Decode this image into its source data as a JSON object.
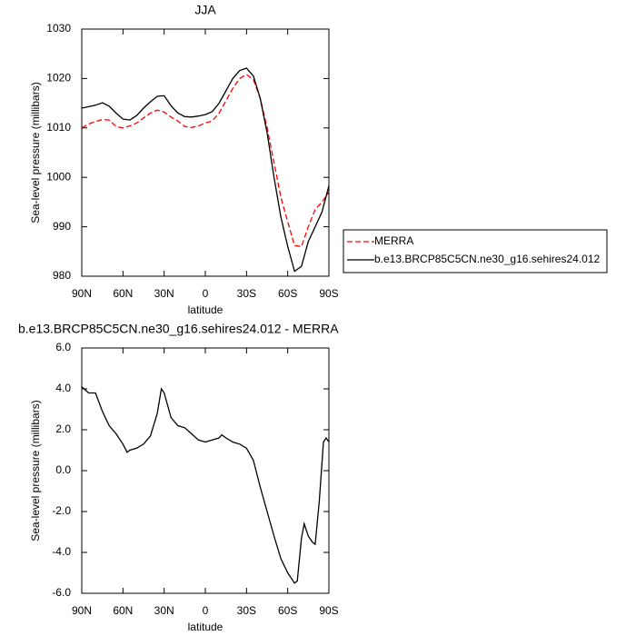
{
  "chart_data": [
    {
      "type": "line",
      "title": "JJA",
      "xlabel": "latitude",
      "ylabel": "Sea-level pressure (millibars)",
      "x": [
        90,
        85,
        80,
        75,
        70,
        65,
        60,
        55,
        50,
        45,
        40,
        35,
        30,
        25,
        20,
        15,
        10,
        5,
        0,
        -5,
        -10,
        -15,
        -20,
        -25,
        -30,
        -35,
        -40,
        -45,
        -50,
        -55,
        -60,
        -65,
        -70,
        -75,
        -80,
        -85,
        -90
      ],
      "series": [
        {
          "name": "MERRA",
          "color": "#ff0000",
          "dashed": true,
          "values": [
            1010,
            1010.8,
            1011.3,
            1011.7,
            1011.6,
            1010.3,
            1010,
            1010.4,
            1011,
            1012,
            1013,
            1013.6,
            1013.2,
            1012.2,
            1011.4,
            1010.3,
            1010.1,
            1010.4,
            1011,
            1011.4,
            1013,
            1015.5,
            1018,
            1020,
            1020.8,
            1019.8,
            1016,
            1010,
            1003,
            996,
            991,
            986.2,
            986,
            990,
            993.5,
            995,
            997
          ]
        },
        {
          "name": "b.e13.BRCP85C5CN.ne30_g16.sehires24.012",
          "color": "#000000",
          "dashed": false,
          "values": [
            1014,
            1014.3,
            1014.6,
            1015.1,
            1014.4,
            1013,
            1011.8,
            1011.6,
            1012.5,
            1014,
            1015.3,
            1016.4,
            1016.5,
            1014.5,
            1013,
            1012.3,
            1012.2,
            1012.4,
            1012.7,
            1013.3,
            1015,
            1017.5,
            1020,
            1021.6,
            1022.1,
            1020.5,
            1016,
            1009,
            1000,
            992,
            986,
            981,
            982,
            987,
            990,
            993,
            998.3
          ]
        }
      ],
      "xlim": [
        90,
        -90
      ],
      "xticks": [
        {
          "value": 90,
          "label": "90N"
        },
        {
          "value": 60,
          "label": "60N"
        },
        {
          "value": 30,
          "label": "30N"
        },
        0,
        {
          "value": -30,
          "label": "30S"
        },
        {
          "value": -60,
          "label": "60S"
        },
        {
          "value": -90,
          "label": "90S"
        }
      ],
      "ylim": [
        980,
        1030
      ],
      "yticks": [
        980,
        990,
        1000,
        1010,
        1020,
        1030
      ],
      "legend": "right"
    },
    {
      "type": "line",
      "title": "b.e13.BRCP85C5CN.ne30_g16.sehires24.012 - MERRA",
      "xlabel": "latitude",
      "ylabel": "Sea-level pressure (millibars)",
      "x": [
        90,
        85,
        80,
        75,
        70,
        65,
        60,
        57,
        55,
        50,
        45,
        40,
        35,
        32,
        30,
        25,
        20,
        15,
        10,
        5,
        0,
        -5,
        -10,
        -12,
        -15,
        -20,
        -25,
        -30,
        -35,
        -40,
        -45,
        -50,
        -55,
        -60,
        -65,
        -67,
        -70,
        -72,
        -75,
        -78,
        -80,
        -83,
        -86,
        -88,
        -90
      ],
      "values": [
        4.1,
        3.8,
        3.8,
        2.9,
        2.2,
        1.8,
        1.3,
        0.9,
        1.0,
        1.1,
        1.3,
        1.7,
        2.8,
        4.0,
        3.8,
        2.6,
        2.2,
        2.1,
        1.8,
        1.5,
        1.4,
        1.5,
        1.6,
        1.75,
        1.6,
        1.4,
        1.3,
        1.1,
        0.5,
        -0.8,
        -2.0,
        -3.2,
        -4.3,
        -5.0,
        -5.5,
        -5.4,
        -3.3,
        -2.6,
        -3.2,
        -3.5,
        -3.6,
        -1.5,
        1.4,
        1.6,
        1.4
      ],
      "color": "#000000",
      "xlim": [
        90,
        -90
      ],
      "xticks": [
        {
          "value": 90,
          "label": "90N"
        },
        {
          "value": 60,
          "label": "60N"
        },
        {
          "value": 30,
          "label": "30N"
        },
        0,
        {
          "value": -30,
          "label": "30S"
        },
        {
          "value": -60,
          "label": "60S"
        },
        {
          "value": -90,
          "label": "90S"
        }
      ],
      "ylim": [
        -6,
        6
      ],
      "yticks": [
        {
          "value": -6,
          "label": "-6.0"
        },
        {
          "value": -4,
          "label": "-4.0"
        },
        {
          "value": -2,
          "label": "-2.0"
        },
        {
          "value": 0,
          "label": "0.0"
        },
        {
          "value": 2,
          "label": "2.0"
        },
        {
          "value": 4,
          "label": "4.0"
        },
        {
          "value": 6,
          "label": "6.0"
        }
      ]
    }
  ]
}
